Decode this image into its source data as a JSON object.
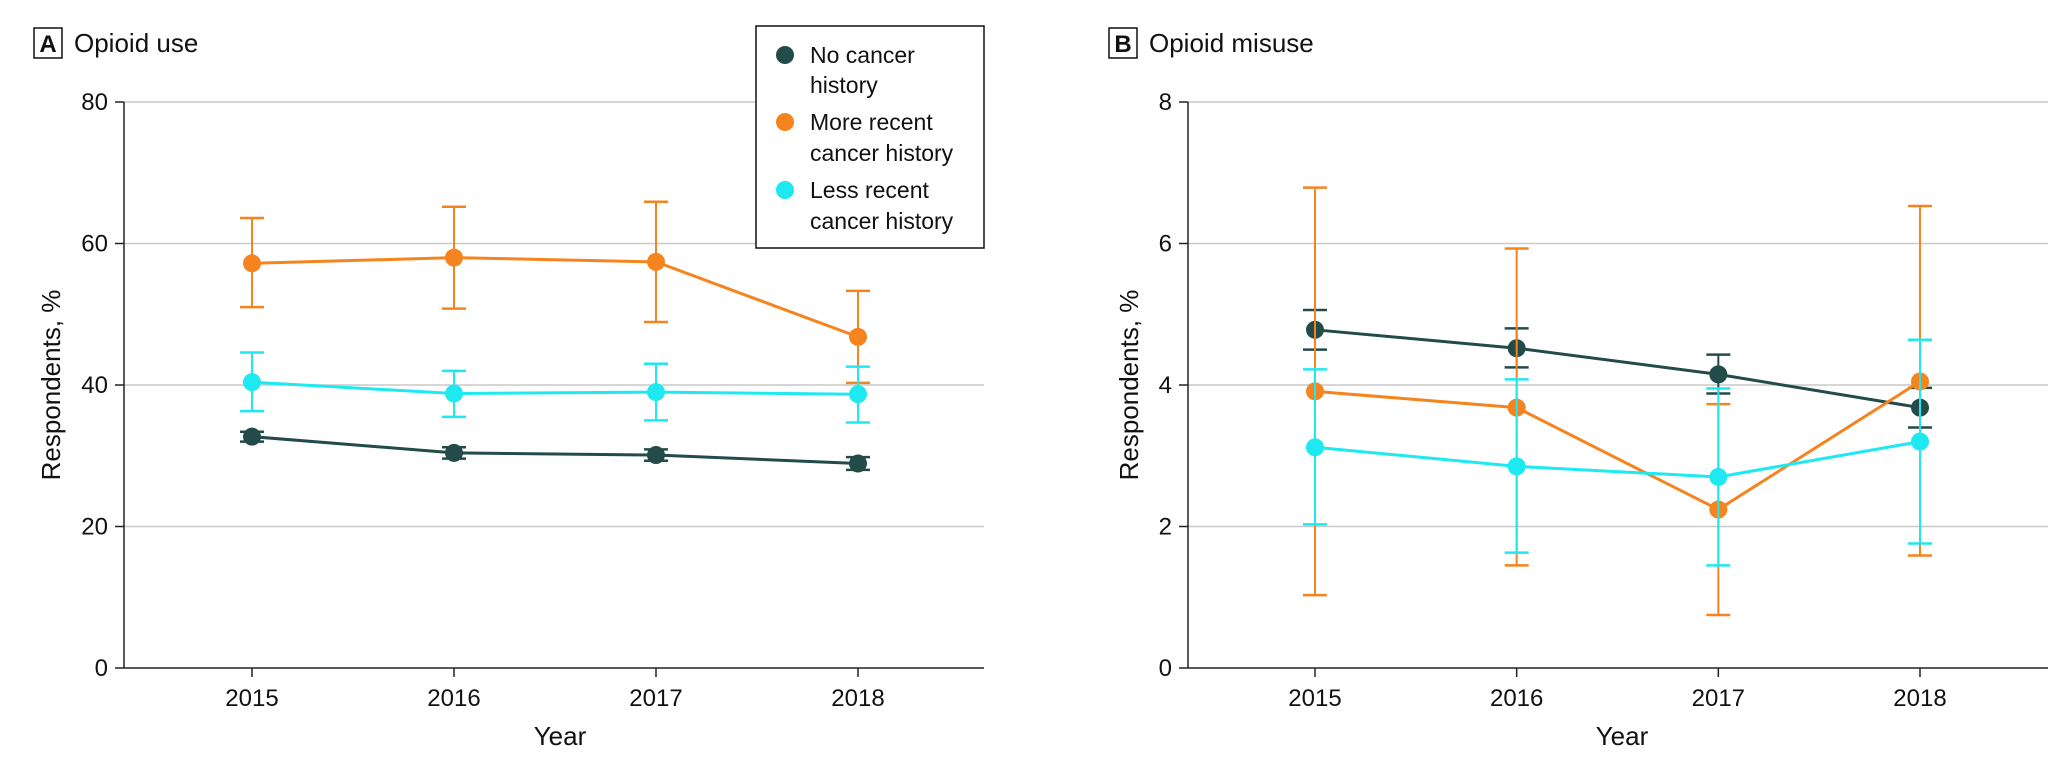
{
  "series_meta": [
    {
      "key": "no_cancer",
      "color": "#234b4a"
    },
    {
      "key": "more_recent",
      "color": "#f5841f"
    },
    {
      "key": "less_recent",
      "color": "#1ee9f0"
    }
  ],
  "legend": {
    "items": [
      {
        "key": "no_cancer",
        "lines": [
          "No cancer",
          "history"
        ]
      },
      {
        "key": "more_recent",
        "lines": [
          "More recent",
          "cancer history"
        ]
      },
      {
        "key": "less_recent",
        "lines": [
          "Less recent",
          "cancer history"
        ]
      }
    ]
  },
  "chart_data": [
    {
      "type": "line",
      "panel": "A",
      "title": "Opioid use",
      "xlabel": "Year",
      "ylabel": "Respondents, %",
      "ylim": [
        0,
        80
      ],
      "yticks": [
        0,
        20,
        40,
        60,
        80
      ],
      "grid": true,
      "categories": [
        "2015",
        "2016",
        "2017",
        "2018"
      ],
      "series": [
        {
          "name": "No cancer history",
          "key": "no_cancer",
          "values": [
            32.7,
            30.4,
            30.1,
            28.9
          ],
          "lower": [
            32.0,
            29.6,
            29.3,
            28.0
          ],
          "upper": [
            33.4,
            31.2,
            30.9,
            29.8
          ]
        },
        {
          "name": "More recent cancer history",
          "key": "more_recent",
          "values": [
            57.2,
            58.0,
            57.4,
            46.8
          ],
          "lower": [
            51.0,
            50.8,
            48.9,
            40.3
          ],
          "upper": [
            63.6,
            65.2,
            65.9,
            53.3
          ]
        },
        {
          "name": "Less recent cancer history",
          "key": "less_recent",
          "values": [
            40.4,
            38.8,
            39.0,
            38.7
          ],
          "lower": [
            36.3,
            35.5,
            35.0,
            34.7
          ],
          "upper": [
            44.6,
            42.0,
            43.0,
            42.6
          ]
        }
      ]
    },
    {
      "type": "line",
      "panel": "B",
      "title": "Opioid misuse",
      "xlabel": "Year",
      "ylabel": "Respondents, %",
      "ylim": [
        0,
        8
      ],
      "yticks": [
        0,
        2,
        4,
        6,
        8
      ],
      "grid": true,
      "categories": [
        "2015",
        "2016",
        "2017",
        "2018"
      ],
      "series": [
        {
          "name": "No cancer history",
          "key": "no_cancer",
          "values": [
            4.78,
            4.52,
            4.15,
            3.68
          ],
          "lower": [
            4.5,
            4.25,
            3.88,
            3.4
          ],
          "upper": [
            5.06,
            4.8,
            4.43,
            3.96
          ]
        },
        {
          "name": "More recent cancer history",
          "key": "more_recent",
          "values": [
            3.91,
            3.68,
            2.24,
            4.05
          ],
          "lower": [
            1.03,
            1.45,
            0.75,
            1.59
          ],
          "upper": [
            6.79,
            5.93,
            3.73,
            6.53
          ]
        },
        {
          "name": "Less recent cancer history",
          "key": "less_recent",
          "values": [
            3.12,
            2.85,
            2.7,
            3.2
          ],
          "lower": [
            2.03,
            1.63,
            1.45,
            1.76
          ],
          "upper": [
            4.22,
            4.08,
            3.95,
            4.64
          ]
        }
      ]
    }
  ]
}
